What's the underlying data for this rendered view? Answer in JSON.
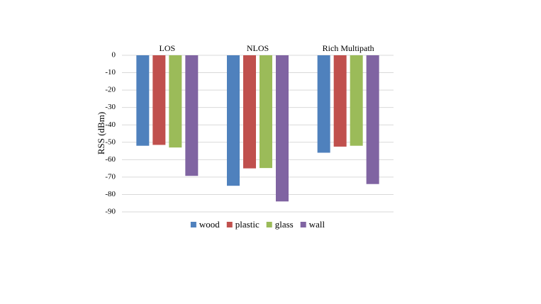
{
  "chart_data": {
    "type": "bar",
    "y_label": "RSS (dBm)",
    "categories": [
      "LOS",
      "NLOS",
      "Rich Multipath"
    ],
    "series": [
      {
        "name": "wood",
        "color": "#4f81bd",
        "values": [
          -52,
          -75,
          -56
        ]
      },
      {
        "name": "plastic",
        "color": "#c0504d",
        "values": [
          -51.5,
          -65,
          -52.5
        ]
      },
      {
        "name": "glass",
        "color": "#9bbb59",
        "values": [
          -53,
          -64.8,
          -52
        ]
      },
      {
        "name": "wall",
        "color": "#8064a2",
        "values": [
          -69.3,
          -84,
          -74
        ]
      }
    ],
    "ylim": [
      -90,
      0
    ],
    "yticks": [
      0,
      -10,
      -20,
      -30,
      -40,
      -50,
      -60,
      -70,
      -80,
      -90
    ],
    "grid": true,
    "legend": "bottom"
  }
}
